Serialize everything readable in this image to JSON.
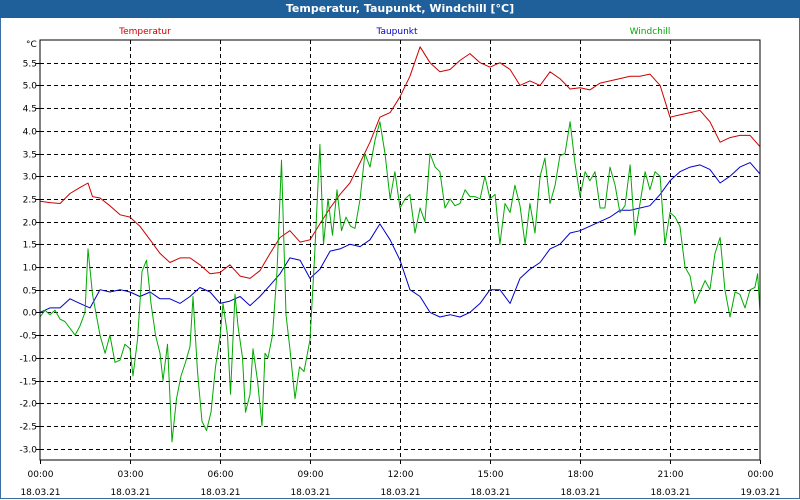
{
  "window": {
    "title": "Temperatur, Taupunkt, Windchill [°C]"
  },
  "chart_data": {
    "type": "line",
    "title": "Temperatur, Taupunkt, Windchill [°C]",
    "ylabel": "°C",
    "xlabel": "",
    "ylim": [
      -3.25,
      6.0
    ],
    "xlim": [
      0,
      24
    ],
    "grid": true,
    "legend_placement": "top",
    "y_ticks": [
      5.5,
      5.0,
      4.5,
      4.0,
      3.5,
      3.0,
      2.5,
      2.0,
      1.5,
      1.0,
      0.5,
      0.0,
      -0.5,
      -1.0,
      -1.5,
      -2.0,
      -2.5,
      -3.0
    ],
    "y_tick_labels": [
      "5.5",
      "5.0",
      "4.5",
      "4.0",
      "3.5",
      "3.0",
      "2.5",
      "2.0",
      "1.5",
      "1.0",
      "0.5",
      "0.0",
      "-0.5",
      "-1.0",
      "-1.5",
      "-2.0",
      "-2.5",
      "-3.0"
    ],
    "x_ticks": [
      0,
      3,
      6,
      9,
      12,
      15,
      18,
      21,
      24
    ],
    "x_tick_labels": [
      {
        "time": "00:00",
        "date": "18.03.21"
      },
      {
        "time": "03:00",
        "date": "18.03.21"
      },
      {
        "time": "06:00",
        "date": "18.03.21"
      },
      {
        "time": "09:00",
        "date": "18.03.21"
      },
      {
        "time": "12:00",
        "date": "18.03.21"
      },
      {
        "time": "15:00",
        "date": "18.03.21"
      },
      {
        "time": "18:00",
        "date": "18.03.21"
      },
      {
        "time": "21:00",
        "date": "18.03.21"
      },
      {
        "time": "00:00",
        "date": "19.03.21"
      }
    ],
    "colors": {
      "Temperatur": "#cc0000",
      "Taupunkt": "#0000cc",
      "Windchill": "#00aa00"
    },
    "series": [
      {
        "name": "Temperatur",
        "color": "#cc0000",
        "points": [
          [
            0,
            2.45
          ],
          [
            0.33,
            2.42
          ],
          [
            0.67,
            2.4
          ],
          [
            1,
            2.62
          ],
          [
            1.33,
            2.75
          ],
          [
            1.6,
            2.85
          ],
          [
            1.75,
            2.55
          ],
          [
            2,
            2.52
          ],
          [
            2.33,
            2.35
          ],
          [
            2.67,
            2.15
          ],
          [
            3,
            2.1
          ],
          [
            3.33,
            1.9
          ],
          [
            3.67,
            1.6
          ],
          [
            4,
            1.3
          ],
          [
            4.33,
            1.1
          ],
          [
            4.67,
            1.2
          ],
          [
            5,
            1.2
          ],
          [
            5.33,
            1.05
          ],
          [
            5.67,
            0.85
          ],
          [
            6,
            0.88
          ],
          [
            6.33,
            1.05
          ],
          [
            6.67,
            0.8
          ],
          [
            7,
            0.75
          ],
          [
            7.33,
            0.92
          ],
          [
            7.67,
            1.3
          ],
          [
            8,
            1.65
          ],
          [
            8.33,
            1.8
          ],
          [
            8.67,
            1.55
          ],
          [
            9,
            1.6
          ],
          [
            9.33,
            1.95
          ],
          [
            9.67,
            2.3
          ],
          [
            10,
            2.6
          ],
          [
            10.33,
            2.85
          ],
          [
            10.67,
            3.3
          ],
          [
            11,
            3.75
          ],
          [
            11.33,
            4.3
          ],
          [
            11.67,
            4.4
          ],
          [
            12,
            4.75
          ],
          [
            12.33,
            5.2
          ],
          [
            12.67,
            5.85
          ],
          [
            13,
            5.5
          ],
          [
            13.33,
            5.3
          ],
          [
            13.67,
            5.35
          ],
          [
            14,
            5.55
          ],
          [
            14.33,
            5.7
          ],
          [
            14.67,
            5.5
          ],
          [
            15,
            5.4
          ],
          [
            15.33,
            5.5
          ],
          [
            15.67,
            5.35
          ],
          [
            16,
            5.0
          ],
          [
            16.33,
            5.1
          ],
          [
            16.67,
            5.0
          ],
          [
            17,
            5.3
          ],
          [
            17.33,
            5.15
          ],
          [
            17.67,
            4.92
          ],
          [
            18,
            4.95
          ],
          [
            18.33,
            4.9
          ],
          [
            18.67,
            5.05
          ],
          [
            19,
            5.1
          ],
          [
            19.33,
            5.15
          ],
          [
            19.67,
            5.2
          ],
          [
            20,
            5.2
          ],
          [
            20.33,
            5.25
          ],
          [
            20.67,
            5.0
          ],
          [
            21,
            4.3
          ],
          [
            21.33,
            4.35
          ],
          [
            21.67,
            4.4
          ],
          [
            22,
            4.45
          ],
          [
            22.33,
            4.2
          ],
          [
            22.67,
            3.75
          ],
          [
            23,
            3.85
          ],
          [
            23.33,
            3.9
          ],
          [
            23.67,
            3.9
          ],
          [
            24,
            3.65
          ]
        ]
      },
      {
        "name": "Taupunkt",
        "color": "#0000cc",
        "points": [
          [
            0,
            0.0
          ],
          [
            0.33,
            0.1
          ],
          [
            0.67,
            0.1
          ],
          [
            1,
            0.3
          ],
          [
            1.33,
            0.2
          ],
          [
            1.67,
            0.1
          ],
          [
            2,
            0.5
          ],
          [
            2.33,
            0.45
          ],
          [
            2.67,
            0.5
          ],
          [
            3,
            0.45
          ],
          [
            3.33,
            0.35
          ],
          [
            3.67,
            0.45
          ],
          [
            4,
            0.3
          ],
          [
            4.33,
            0.3
          ],
          [
            4.67,
            0.2
          ],
          [
            5,
            0.35
          ],
          [
            5.33,
            0.55
          ],
          [
            5.67,
            0.45
          ],
          [
            6,
            0.2
          ],
          [
            6.33,
            0.25
          ],
          [
            6.67,
            0.35
          ],
          [
            7,
            0.15
          ],
          [
            7.33,
            0.35
          ],
          [
            7.67,
            0.6
          ],
          [
            8,
            0.85
          ],
          [
            8.33,
            1.2
          ],
          [
            8.67,
            1.15
          ],
          [
            9,
            0.75
          ],
          [
            9.33,
            0.95
          ],
          [
            9.67,
            1.35
          ],
          [
            10,
            1.4
          ],
          [
            10.33,
            1.5
          ],
          [
            10.67,
            1.45
          ],
          [
            11,
            1.6
          ],
          [
            11.33,
            1.95
          ],
          [
            11.67,
            1.6
          ],
          [
            12,
            1.15
          ],
          [
            12.33,
            0.5
          ],
          [
            12.67,
            0.35
          ],
          [
            13,
            0.0
          ],
          [
            13.33,
            -0.1
          ],
          [
            13.67,
            -0.05
          ],
          [
            14,
            -0.1
          ],
          [
            14.33,
            0.0
          ],
          [
            14.67,
            0.2
          ],
          [
            15,
            0.5
          ],
          [
            15.33,
            0.5
          ],
          [
            15.67,
            0.2
          ],
          [
            16,
            0.75
          ],
          [
            16.33,
            0.95
          ],
          [
            16.67,
            1.1
          ],
          [
            17,
            1.4
          ],
          [
            17.33,
            1.5
          ],
          [
            17.67,
            1.75
          ],
          [
            18,
            1.8
          ],
          [
            18.33,
            1.9
          ],
          [
            18.67,
            2.0
          ],
          [
            19,
            2.1
          ],
          [
            19.33,
            2.25
          ],
          [
            19.67,
            2.25
          ],
          [
            20,
            2.3
          ],
          [
            20.33,
            2.35
          ],
          [
            20.67,
            2.6
          ],
          [
            21,
            2.9
          ],
          [
            21.33,
            3.1
          ],
          [
            21.67,
            3.2
          ],
          [
            22,
            3.25
          ],
          [
            22.33,
            3.15
          ],
          [
            22.67,
            2.85
          ],
          [
            23,
            3.0
          ],
          [
            23.33,
            3.2
          ],
          [
            23.67,
            3.3
          ],
          [
            24,
            3.05
          ]
        ]
      },
      {
        "name": "Windchill",
        "color": "#00aa00",
        "points": [
          [
            0,
            -0.1
          ],
          [
            0.17,
            0.05
          ],
          [
            0.33,
            -0.05
          ],
          [
            0.5,
            0.05
          ],
          [
            0.67,
            -0.15
          ],
          [
            0.83,
            -0.2
          ],
          [
            1,
            -0.35
          ],
          [
            1.17,
            -0.5
          ],
          [
            1.33,
            -0.3
          ],
          [
            1.5,
            0.0
          ],
          [
            1.6,
            1.4
          ],
          [
            1.75,
            0.4
          ],
          [
            2,
            -0.5
          ],
          [
            2.17,
            -0.9
          ],
          [
            2.33,
            -0.5
          ],
          [
            2.5,
            -1.1
          ],
          [
            2.67,
            -1.05
          ],
          [
            2.83,
            -0.7
          ],
          [
            3,
            -0.8
          ],
          [
            3.1,
            -1.4
          ],
          [
            3.25,
            -0.6
          ],
          [
            3.4,
            0.9
          ],
          [
            3.55,
            1.15
          ],
          [
            3.7,
            0.2
          ],
          [
            3.85,
            -0.5
          ],
          [
            4,
            -0.9
          ],
          [
            4.1,
            -1.5
          ],
          [
            4.25,
            -0.7
          ],
          [
            4.4,
            -2.85
          ],
          [
            4.55,
            -1.9
          ],
          [
            4.7,
            -1.4
          ],
          [
            4.85,
            -1.1
          ],
          [
            5,
            -0.75
          ],
          [
            5.1,
            0.35
          ],
          [
            5.25,
            -1.3
          ],
          [
            5.4,
            -2.4
          ],
          [
            5.55,
            -2.6
          ],
          [
            5.7,
            -2.2
          ],
          [
            5.85,
            -1.2
          ],
          [
            6,
            -0.55
          ],
          [
            6.1,
            0.2
          ],
          [
            6.25,
            -0.5
          ],
          [
            6.35,
            -1.8
          ],
          [
            6.5,
            0.4
          ],
          [
            6.6,
            -0.3
          ],
          [
            6.75,
            -1.0
          ],
          [
            6.85,
            -2.2
          ],
          [
            7,
            -1.8
          ],
          [
            7.1,
            -0.8
          ],
          [
            7.25,
            -1.5
          ],
          [
            7.4,
            -2.5
          ],
          [
            7.5,
            -0.9
          ],
          [
            7.6,
            -1.0
          ],
          [
            7.75,
            -0.5
          ],
          [
            7.9,
            0.9
          ],
          [
            8.05,
            3.35
          ],
          [
            8.2,
            -0.05
          ],
          [
            8.33,
            -0.8
          ],
          [
            8.5,
            -1.9
          ],
          [
            8.65,
            -1.2
          ],
          [
            8.8,
            -1.3
          ],
          [
            9,
            -0.6
          ],
          [
            9.15,
            1.2
          ],
          [
            9.33,
            3.7
          ],
          [
            9.45,
            1.5
          ],
          [
            9.6,
            2.5
          ],
          [
            9.75,
            1.7
          ],
          [
            9.9,
            2.7
          ],
          [
            10.05,
            1.8
          ],
          [
            10.2,
            2.1
          ],
          [
            10.35,
            1.9
          ],
          [
            10.5,
            1.85
          ],
          [
            10.67,
            2.5
          ],
          [
            10.83,
            3.5
          ],
          [
            11,
            3.2
          ],
          [
            11.17,
            3.8
          ],
          [
            11.33,
            4.2
          ],
          [
            11.5,
            3.5
          ],
          [
            11.67,
            2.5
          ],
          [
            11.83,
            3.1
          ],
          [
            12,
            2.3
          ],
          [
            12.17,
            2.5
          ],
          [
            12.33,
            2.6
          ],
          [
            12.5,
            1.75
          ],
          [
            12.67,
            2.3
          ],
          [
            12.83,
            2.0
          ],
          [
            13,
            3.5
          ],
          [
            13.17,
            3.2
          ],
          [
            13.33,
            3.1
          ],
          [
            13.5,
            2.3
          ],
          [
            13.67,
            2.5
          ],
          [
            13.83,
            2.35
          ],
          [
            14,
            2.4
          ],
          [
            14.17,
            2.7
          ],
          [
            14.33,
            2.55
          ],
          [
            14.5,
            2.55
          ],
          [
            14.67,
            2.5
          ],
          [
            14.83,
            3.0
          ],
          [
            15,
            2.5
          ],
          [
            15.17,
            2.6
          ],
          [
            15.33,
            1.5
          ],
          [
            15.5,
            2.4
          ],
          [
            15.67,
            2.2
          ],
          [
            15.83,
            2.8
          ],
          [
            16,
            2.35
          ],
          [
            16.17,
            1.5
          ],
          [
            16.33,
            2.4
          ],
          [
            16.5,
            1.75
          ],
          [
            16.67,
            3.0
          ],
          [
            16.83,
            3.4
          ],
          [
            17,
            2.4
          ],
          [
            17.17,
            2.8
          ],
          [
            17.33,
            3.45
          ],
          [
            17.5,
            3.5
          ],
          [
            17.67,
            4.2
          ],
          [
            17.83,
            3.3
          ],
          [
            18,
            2.55
          ],
          [
            18.17,
            3.1
          ],
          [
            18.33,
            2.9
          ],
          [
            18.5,
            3.1
          ],
          [
            18.67,
            2.3
          ],
          [
            18.83,
            2.3
          ],
          [
            19,
            3.2
          ],
          [
            19.17,
            2.8
          ],
          [
            19.33,
            2.2
          ],
          [
            19.5,
            2.35
          ],
          [
            19.67,
            3.25
          ],
          [
            19.83,
            1.7
          ],
          [
            20,
            2.4
          ],
          [
            20.17,
            3.1
          ],
          [
            20.33,
            2.7
          ],
          [
            20.5,
            3.1
          ],
          [
            20.67,
            3.0
          ],
          [
            20.83,
            1.5
          ],
          [
            21,
            2.2
          ],
          [
            21.17,
            2.1
          ],
          [
            21.33,
            1.9
          ],
          [
            21.5,
            1.0
          ],
          [
            21.67,
            0.8
          ],
          [
            21.83,
            0.2
          ],
          [
            22,
            0.45
          ],
          [
            22.17,
            0.7
          ],
          [
            22.33,
            0.5
          ],
          [
            22.5,
            1.3
          ],
          [
            22.67,
            1.65
          ],
          [
            22.83,
            0.5
          ],
          [
            23,
            -0.1
          ],
          [
            23.17,
            0.45
          ],
          [
            23.33,
            0.4
          ],
          [
            23.5,
            0.1
          ],
          [
            23.67,
            0.5
          ],
          [
            23.83,
            0.55
          ],
          [
            23.92,
            0.85
          ],
          [
            24,
            0.0
          ]
        ]
      }
    ]
  }
}
